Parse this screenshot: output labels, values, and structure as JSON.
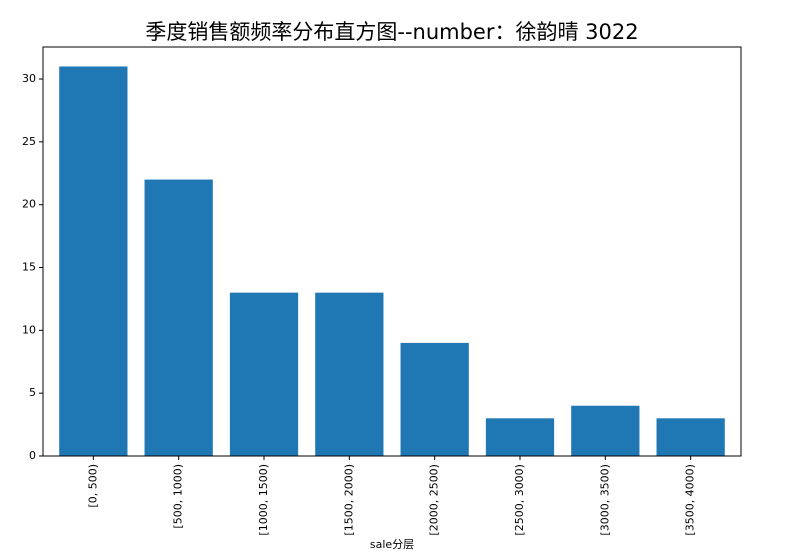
{
  "chart_data": {
    "type": "bar",
    "title": "季度销售额频率分布直方图--number：徐韵晴 3022",
    "x_label": "sale分层",
    "categories": [
      "[0, 500)",
      "[500, 1000)",
      "[1000, 1500)",
      "[1500, 2000)",
      "[2000, 2500)",
      "[2500, 3000)",
      "[3000, 3500)",
      "[3500, 4000)"
    ],
    "values": [
      31,
      22,
      13,
      13,
      9,
      3,
      4,
      3
    ],
    "color": "#1f77b4",
    "ylim": [
      0,
      32.55
    ],
    "yticks": [
      0,
      5,
      10,
      15,
      20,
      25,
      30
    ],
    "grid": false
  }
}
